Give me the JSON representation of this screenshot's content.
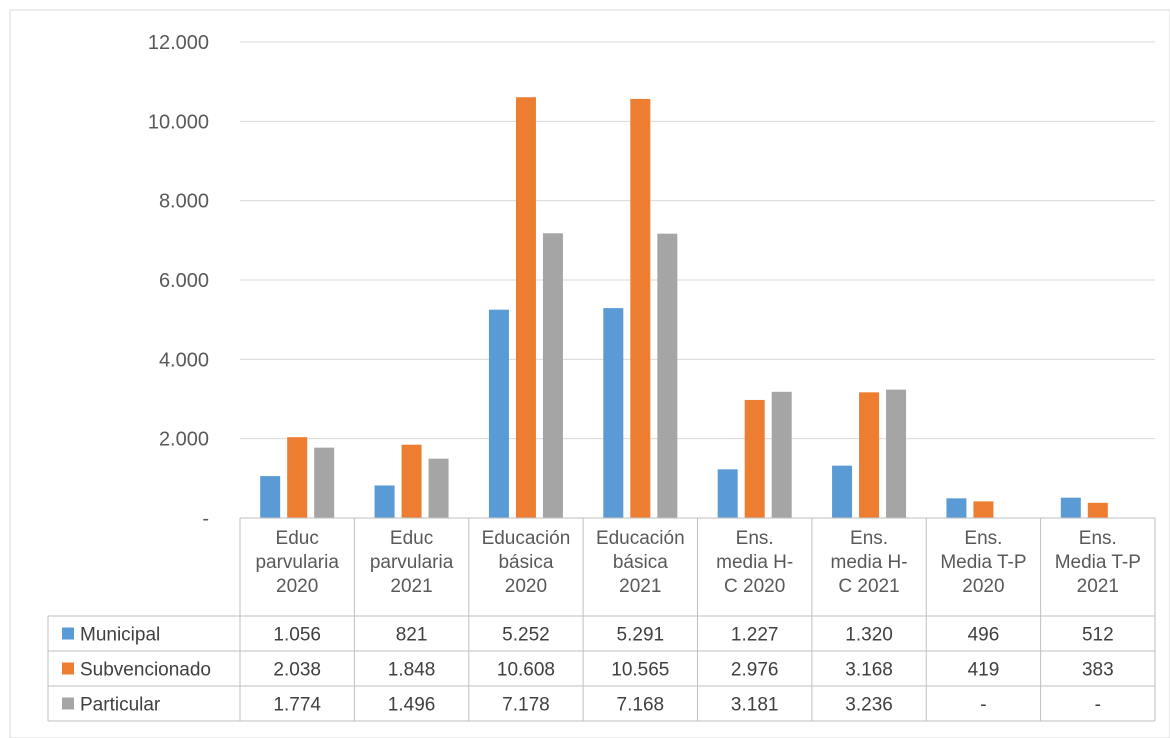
{
  "chart_data": {
    "type": "bar",
    "title": "",
    "xlabel": "",
    "ylabel": "",
    "ylim": [
      0,
      12000
    ],
    "y_ticks": [
      "-",
      "2.000",
      "4.000",
      "6.000",
      "8.000",
      "10.000",
      "12.000"
    ],
    "grid": true,
    "legend": "data table",
    "categories": [
      [
        "Educ",
        "parvularia",
        "2020"
      ],
      [
        "Educ",
        "parvularia",
        "2021"
      ],
      [
        "Educación",
        "básica",
        "2020"
      ],
      [
        "Educación",
        "básica",
        "2021"
      ],
      [
        "Ens.",
        "media H-",
        "C 2020"
      ],
      [
        "Ens.",
        "media H-",
        "C 2021"
      ],
      [
        "Ens.",
        "Media T-P",
        "2020"
      ],
      [
        "Ens.",
        "Media T-P",
        "2021"
      ]
    ],
    "series": [
      {
        "name": "Municipal",
        "color": "#5B9BD5",
        "values": [
          1056,
          821,
          5252,
          5291,
          1227,
          1320,
          496,
          512
        ],
        "labels": [
          "1.056",
          "821",
          "5.252",
          "5.291",
          "1.227",
          "1.320",
          "496",
          "512"
        ]
      },
      {
        "name": "Subvencionado",
        "color": "#ED7D31",
        "values": [
          2038,
          1848,
          10608,
          10565,
          2976,
          3168,
          419,
          383
        ],
        "labels": [
          "2.038",
          "1.848",
          "10.608",
          "10.565",
          "2.976",
          "3.168",
          "419",
          "383"
        ]
      },
      {
        "name": "Particular",
        "color": "#A5A5A5",
        "values": [
          1774,
          1496,
          7178,
          7168,
          3181,
          3236,
          0,
          0
        ],
        "labels": [
          "1.774",
          "1.496",
          "7.178",
          "7.168",
          "3.181",
          "3.236",
          "-",
          "-"
        ]
      }
    ]
  }
}
